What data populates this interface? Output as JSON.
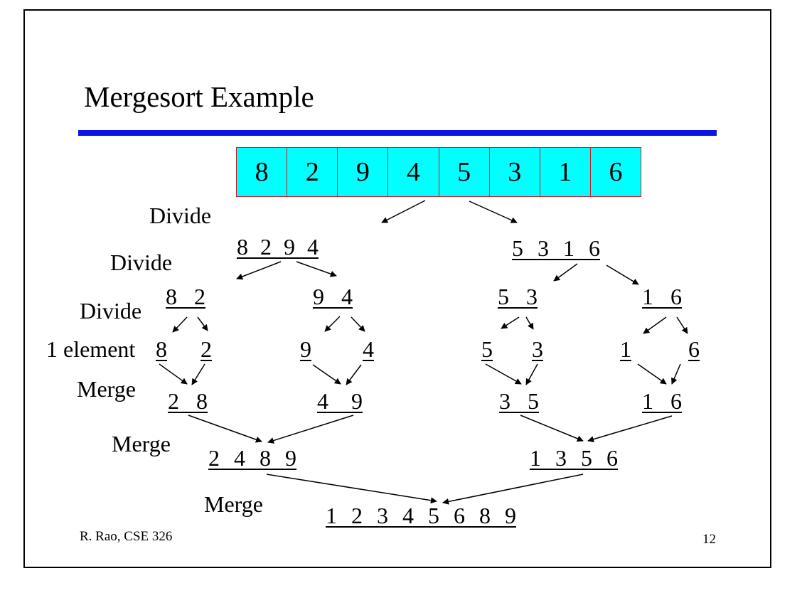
{
  "slide": {
    "title": "Mergesort Example",
    "footer_left": "R. Rao, CSE 326",
    "page_number": "12"
  },
  "array": [
    "8",
    "2",
    "9",
    "4",
    "5",
    "3",
    "1",
    "6"
  ],
  "labels": {
    "divide_1": "Divide",
    "divide_2": "Divide",
    "divide_3": "Divide",
    "one_element": "1 element",
    "merge_1": "Merge",
    "merge_2": "Merge",
    "merge_3": "Merge"
  },
  "divide_level_1": {
    "left": "8 2 9 4",
    "right": "5 3 1 6"
  },
  "divide_level_2": {
    "a": "8 2",
    "b": "9 4",
    "c": "5 3",
    "d": "1 6"
  },
  "singletons": [
    "8",
    "2",
    "9",
    "4",
    "5",
    "3",
    "1",
    "6"
  ],
  "merge_level_1": {
    "a": "2 8",
    "b": "4 9",
    "c": "3 5",
    "d": "1 6"
  },
  "merge_level_2": {
    "left": "2 4 8 9",
    "right": "1 3 5 6"
  },
  "result": "1 2 3 4 5 6 8 9"
}
